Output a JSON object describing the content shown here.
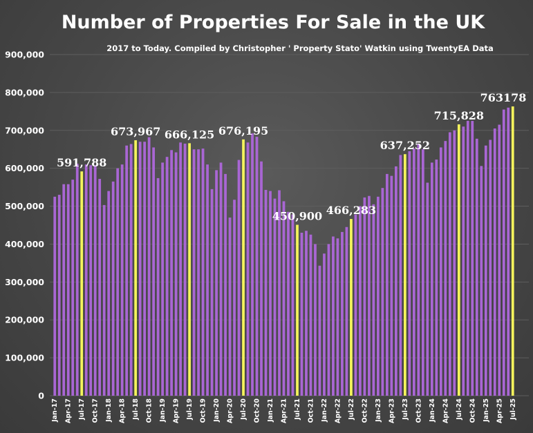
{
  "chart_data": {
    "type": "bar",
    "title": "Number of Properties For Sale in the UK",
    "subtitle": "2017 to Today. Compiled by Christopher ' Property Stato' Watkin using TwentyEA Data",
    "xlabel": "",
    "ylabel": "",
    "ylim": [
      0,
      900000
    ],
    "yticks": [
      0,
      100000,
      200000,
      300000,
      400000,
      500000,
      600000,
      700000,
      800000,
      900000
    ],
    "ytick_labels": [
      "0",
      "100,000",
      "200,000",
      "300,000",
      "400,000",
      "500,000",
      "600,000",
      "700,000",
      "800,000",
      "900,000"
    ],
    "grid": true,
    "legend": "none",
    "colors": {
      "normal": "#a966d4",
      "highlight": "#f4f35c",
      "background": "#474747",
      "text": "#ffffff"
    },
    "x_tick_labels": [
      "Jan-17",
      "Apr-17",
      "Jul-17",
      "Oct-17",
      "Jan-18",
      "Apr-18",
      "Jul-18",
      "Oct-18",
      "Jan-19",
      "Apr-19",
      "Jul-19",
      "Oct-19",
      "Jan-20",
      "Apr-20",
      "Jul-20",
      "Oct-20",
      "Jan-21",
      "Apr-21",
      "Jul-21",
      "Oct-21",
      "Jan-22",
      "Apr-22",
      "Jul-22",
      "Oct-22",
      "Jan-23",
      "Apr-23",
      "Jul-23",
      "Oct-23",
      "Jan-24",
      "Apr-24",
      "Jul-24",
      "Oct-24",
      "Jan-25",
      "Apr-25",
      "Jul-25"
    ],
    "values": [
      525000,
      530000,
      558000,
      558000,
      570000,
      612000,
      591788,
      610000,
      608000,
      608000,
      572000,
      503000,
      540000,
      565000,
      600000,
      610000,
      660000,
      664000,
      673967,
      670000,
      670000,
      682000,
      655000,
      574000,
      615000,
      630000,
      648000,
      642000,
      668000,
      665000,
      666125,
      650000,
      650000,
      652000,
      610000,
      545000,
      595000,
      615000,
      585000,
      470000,
      517000,
      622000,
      676195,
      668000,
      692000,
      683000,
      618000,
      543000,
      540000,
      520000,
      542000,
      513000,
      485000,
      478000,
      450900,
      430000,
      435000,
      425000,
      400000,
      343000,
      375000,
      400000,
      420000,
      415000,
      432000,
      445000,
      466283,
      478000,
      500000,
      523000,
      527000,
      505000,
      525000,
      548000,
      585000,
      580000,
      605000,
      635000,
      637252,
      645000,
      652000,
      665000,
      650000,
      562000,
      615000,
      623000,
      655000,
      672000,
      695000,
      700000,
      715828,
      710000,
      725000,
      725000,
      678000,
      606000,
      660000,
      675000,
      705000,
      715000,
      755000,
      760000,
      763178
    ],
    "highlight_indices": [
      6,
      18,
      30,
      42,
      54,
      66,
      78,
      90,
      102
    ],
    "data_labels": [
      {
        "index": 6,
        "text": "591,788"
      },
      {
        "index": 18,
        "text": "673,967"
      },
      {
        "index": 30,
        "text": "666,125"
      },
      {
        "index": 42,
        "text": "676,195"
      },
      {
        "index": 54,
        "text": "450,900"
      },
      {
        "index": 66,
        "text": "466,283"
      },
      {
        "index": 78,
        "text": "637,252"
      },
      {
        "index": 90,
        "text": "715,828"
      },
      {
        "index": 102,
        "text": "763178"
      }
    ]
  }
}
